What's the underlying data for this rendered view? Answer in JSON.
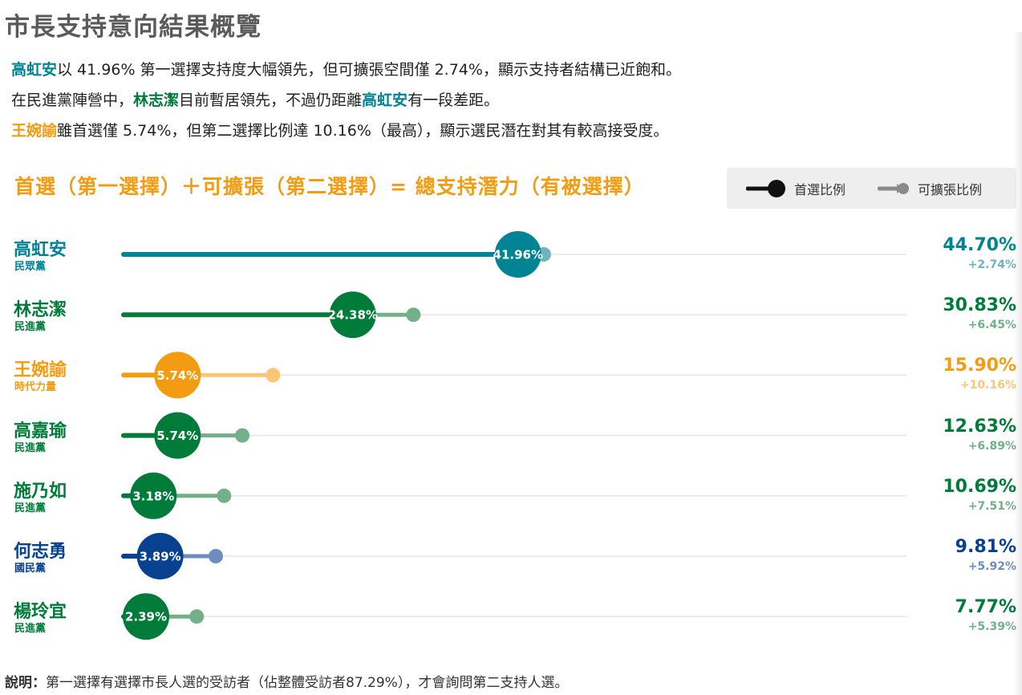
{
  "page_title": "市長支持意向結果概覽",
  "summary": [
    [
      {
        "t": "高虹安",
        "c": "#008393"
      },
      {
        "t": "以 41.96% 第一選擇支持度大幅領先，但可擴張空間僅 2.74%，顯示支持者結構已近飽和。"
      }
    ],
    [
      {
        "t": "在民進黨陣營中，"
      },
      {
        "t": "林志潔",
        "c": "#007b3a"
      },
      {
        "t": "目前暫居領先，不過仍距離"
      },
      {
        "t": "高虹安",
        "c": "#008393"
      },
      {
        "t": "有一段差距。"
      }
    ],
    [
      {
        "t": "王婉諭",
        "c": "#f39c12"
      },
      {
        "t": "雖首選僅 5.74%，但第二選擇比例達 10.16%（最高），顯示選民潛在對其有較高接受度。"
      }
    ]
  ],
  "legend": {
    "first_label": "首選比例",
    "second_label": "可擴張比例"
  },
  "footnote": {
    "label": "說明：",
    "text": "第一選擇有選擇市長人選的受訪者（佔整體受訪者87.29%），才會詢問第二支持人選。"
  },
  "chart_data": {
    "type": "bar",
    "title": "首選（第一選擇）＋可擴張（第二選擇）= 總支持潛力（有被選擇）",
    "xlim": [
      0,
      70
    ],
    "grid": false,
    "legend_position": "top-right",
    "categories": [
      "高虹安",
      "林志潔",
      "王婉諭",
      "高嘉瑜",
      "施乃如",
      "何志勇",
      "楊玲宜"
    ],
    "series": [
      {
        "name": "首選比例",
        "values": [
          41.96,
          24.38,
          5.74,
          5.74,
          3.18,
          3.89,
          2.39
        ]
      },
      {
        "name": "可擴張比例",
        "values": [
          2.74,
          6.45,
          10.16,
          6.89,
          7.51,
          5.92,
          5.39
        ]
      }
    ],
    "candidates": [
      {
        "name": "高虹安",
        "party": "民眾黨",
        "first": 41.96,
        "first_label": "41.96%",
        "expand": 2.74,
        "expand_label": "+2.74%",
        "total_label": "44.70%",
        "color": "#008393",
        "light": "#6fb3bd"
      },
      {
        "name": "林志潔",
        "party": "民進黨",
        "first": 24.38,
        "first_label": "24.38%",
        "expand": 6.45,
        "expand_label": "+6.45%",
        "total_label": "30.83%",
        "color": "#007b3a",
        "light": "#72b089"
      },
      {
        "name": "王婉諭",
        "party": "時代力量",
        "first": 5.74,
        "first_label": "5.74%",
        "expand": 10.16,
        "expand_label": "+10.16%",
        "total_label": "15.90%",
        "color": "#f39c12",
        "light": "#fbc777"
      },
      {
        "name": "高嘉瑜",
        "party": "民進黨",
        "first": 5.74,
        "first_label": "5.74%",
        "expand": 6.89,
        "expand_label": "+6.89%",
        "total_label": "12.63%",
        "color": "#007b3a",
        "light": "#72b089"
      },
      {
        "name": "施乃如",
        "party": "民進黨",
        "first": 3.18,
        "first_label": "3.18%",
        "expand": 7.51,
        "expand_label": "+7.51%",
        "total_label": "10.69%",
        "color": "#007b3a",
        "light": "#72b089"
      },
      {
        "name": "何志勇",
        "party": "國民黨",
        "first": 3.89,
        "first_label": "3.89%",
        "expand": 5.92,
        "expand_label": "+5.92%",
        "total_label": "9.81%",
        "color": "#08418f",
        "light": "#6d8dc0"
      },
      {
        "name": "楊玲宜",
        "party": "民進黨",
        "first": 2.39,
        "first_label": "2.39%",
        "expand": 5.39,
        "expand_label": "+5.39%",
        "total_label": "7.77%",
        "color": "#007b3a",
        "light": "#72b089"
      }
    ]
  }
}
